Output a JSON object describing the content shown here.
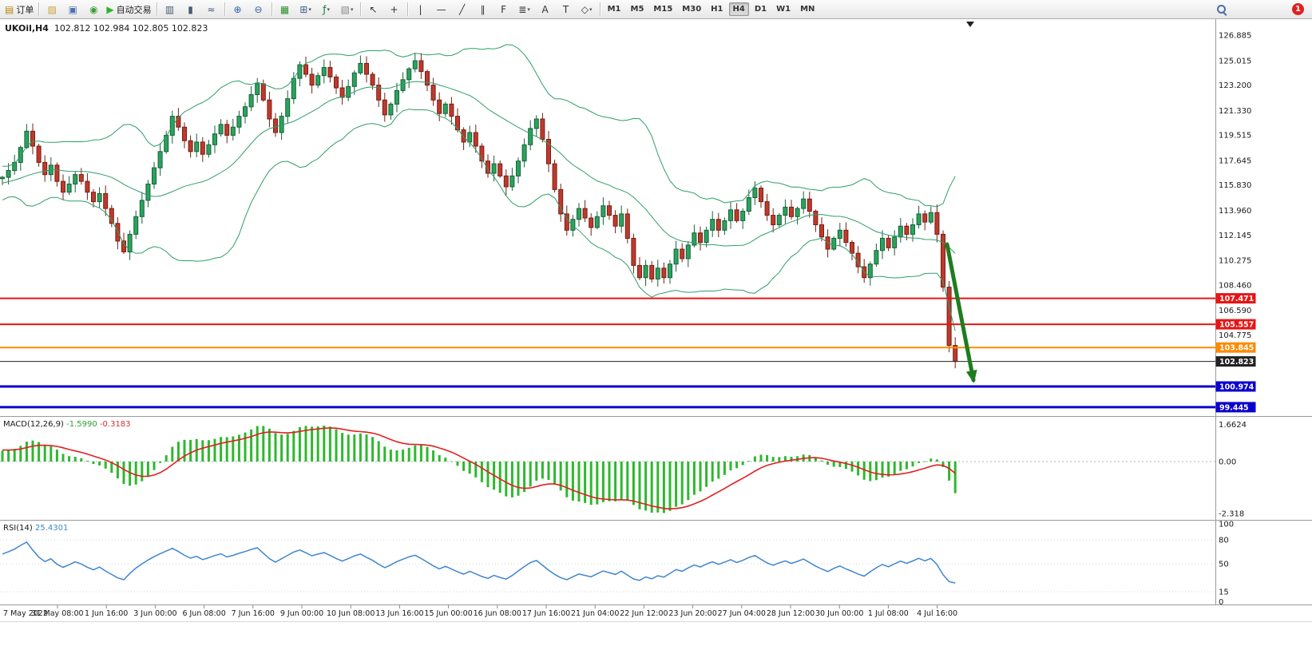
{
  "toolbar": {
    "badge_count": "1",
    "items": [
      {
        "name": "new-order-button",
        "kind": "labeled",
        "glyph": "▤",
        "color": "#b8860b",
        "label": "订单"
      },
      {
        "kind": "sep"
      },
      {
        "name": "chart-window-icon",
        "kind": "icon",
        "glyph": "▨",
        "color": "#c8a23c"
      },
      {
        "name": "profiles-icon",
        "kind": "icon",
        "glyph": "▣",
        "color": "#4d6fb0"
      },
      {
        "name": "market-watch-icon",
        "kind": "icon",
        "glyph": "◉",
        "color": "#3aa03a"
      },
      {
        "name": "autotrading-button",
        "kind": "labeled",
        "glyph": "▶",
        "color": "#2db52d",
        "label": "自动交易"
      },
      {
        "kind": "sep"
      },
      {
        "name": "bar-chart-icon",
        "kind": "icon",
        "glyph": "▥",
        "color": "#445a77"
      },
      {
        "name": "candlestick-chart-icon",
        "kind": "icon",
        "glyph": "▮",
        "color": "#445a77"
      },
      {
        "name": "line-chart-icon",
        "kind": "icon",
        "glyph": "≈",
        "color": "#445a77"
      },
      {
        "kind": "sep"
      },
      {
        "name": "zoom-in-icon",
        "kind": "icon",
        "glyph": "⊕",
        "color": "#2f5fa0"
      },
      {
        "name": "zoom-out-icon",
        "kind": "icon",
        "glyph": "⊖",
        "color": "#2f5fa0"
      },
      {
        "kind": "sep"
      },
      {
        "name": "tile-windows-icon",
        "kind": "icon",
        "glyph": "▦",
        "color": "#2d8f2d"
      },
      {
        "name": "arrange-windows-icon",
        "kind": "dropdown",
        "glyph": "⊞",
        "color": "#44608a"
      },
      {
        "name": "indicators-icon",
        "kind": "dropdown",
        "glyph": "ƒ",
        "color": "#0a7a3c"
      },
      {
        "name": "templates-icon",
        "kind": "dropdown",
        "glyph": "▧",
        "color": "#8a8a8a"
      },
      {
        "kind": "sep"
      },
      {
        "name": "cursor-icon",
        "kind": "icon",
        "glyph": "↖",
        "color": "#333333"
      },
      {
        "name": "crosshair-icon",
        "kind": "icon",
        "glyph": "+",
        "color": "#333333"
      },
      {
        "kind": "sep"
      },
      {
        "name": "vertical-line-icon",
        "kind": "icon",
        "glyph": "|",
        "color": "#333333"
      },
      {
        "name": "horizontal-line-icon",
        "kind": "icon",
        "glyph": "—",
        "color": "#333333"
      },
      {
        "name": "trendline-icon",
        "kind": "icon",
        "glyph": "╱",
        "color": "#333333"
      },
      {
        "name": "equidistant-channel-icon",
        "kind": "icon",
        "glyph": "∥",
        "color": "#333333"
      },
      {
        "name": "fibonacci-icon",
        "kind": "icon",
        "glyph": "F",
        "color": "#333333"
      },
      {
        "name": "more-lines-icon",
        "kind": "dropdown",
        "glyph": "≣",
        "color": "#333333"
      },
      {
        "name": "text-icon",
        "kind": "icon",
        "glyph": "A",
        "color": "#333333"
      },
      {
        "name": "text-label-icon",
        "kind": "icon",
        "glyph": "T",
        "color": "#333333"
      },
      {
        "name": "shapes-icon",
        "kind": "dropdown",
        "glyph": "◇",
        "color": "#333333"
      },
      {
        "kind": "sep"
      }
    ],
    "timeframes": [
      {
        "label": "M1",
        "active": false
      },
      {
        "label": "M5",
        "active": false
      },
      {
        "label": "M15",
        "active": false
      },
      {
        "label": "M30",
        "active": false
      },
      {
        "label": "H1",
        "active": false
      },
      {
        "label": "H4",
        "active": true
      },
      {
        "label": "D1",
        "active": false
      },
      {
        "label": "W1",
        "active": false
      },
      {
        "label": "MN",
        "active": false
      }
    ]
  },
  "chart_data": {
    "type": "candlestick",
    "title": {
      "symbol": "UKOil,H4",
      "ohlc": "102.812 102.984 102.805 102.823"
    },
    "timeframe": "H4",
    "price_axis_ticks": [
      126.885,
      125.015,
      123.2,
      121.33,
      119.515,
      117.645,
      115.83,
      113.96,
      112.145,
      110.275,
      108.46,
      106.59,
      104.775
    ],
    "hlines": [
      {
        "price": 107.471,
        "label": "107.471",
        "color": "#e81515",
        "width": 2
      },
      {
        "price": 105.557,
        "label": "105.557",
        "color": "#e81515",
        "width": 2
      },
      {
        "price": 103.845,
        "label": "103.845",
        "color": "#ff8a00",
        "width": 2
      },
      {
        "price": 102.823,
        "label": "102.823",
        "color": "#222222",
        "width": 1,
        "current": true
      },
      {
        "price": 100.974,
        "label": "100.974",
        "color": "#0b00cc",
        "width": 3
      },
      {
        "price": 99.445,
        "label": "99.445",
        "color": "#0b00cc",
        "width": 3
      }
    ],
    "time_labels": [
      "7 May 2022",
      "31 May 08:00",
      "1 Jun 16:00",
      "3 Jun 00:00",
      "6 Jun 08:00",
      "7 Jun 16:00",
      "9 Jun 00:00",
      "10 Jun 08:00",
      "13 Jun 16:00",
      "15 Jun 00:00",
      "16 Jun 08:00",
      "17 Jun 16:00",
      "21 Jun 04:00",
      "22 Jun 12:00",
      "23 Jun 20:00",
      "27 Jun 04:00",
      "28 Jun 12:00",
      "30 Jun 00:00",
      "1 Jul 08:00",
      "4 Jul 16:00"
    ],
    "history_closes": [
      114.0,
      114.6,
      115.2,
      115.8,
      116.3,
      115.9,
      115.3,
      114.8,
      115.4,
      116.0,
      116.5,
      117.0,
      116.6,
      116.1,
      115.7,
      116.2,
      116.8,
      116.4,
      116.0,
      116.3
    ],
    "closes": [
      116.4,
      116.9,
      117.5,
      118.6,
      119.8,
      118.7,
      117.5,
      116.6,
      117.3,
      116.1,
      115.3,
      115.9,
      116.6,
      116.1,
      115.3,
      114.6,
      115.2,
      114.1,
      113.0,
      111.7,
      110.9,
      112.2,
      113.5,
      114.7,
      115.9,
      117.1,
      118.3,
      119.5,
      120.9,
      120.1,
      119.1,
      118.3,
      119.0,
      118.1,
      118.8,
      119.6,
      120.3,
      119.5,
      120.1,
      120.9,
      121.6,
      122.5,
      123.3,
      122.1,
      120.7,
      119.7,
      120.9,
      122.2,
      123.7,
      124.7,
      124.0,
      123.2,
      123.9,
      124.5,
      123.8,
      123.0,
      122.3,
      123.1,
      124.1,
      124.8,
      124.0,
      123.2,
      122.1,
      121.0,
      121.8,
      122.8,
      123.6,
      124.4,
      125.0,
      124.2,
      123.2,
      122.1,
      121.1,
      121.8,
      120.9,
      119.9,
      119.0,
      119.7,
      118.7,
      117.6,
      116.7,
      117.4,
      116.5,
      115.7,
      116.5,
      117.6,
      118.8,
      120.0,
      120.7,
      119.2,
      117.4,
      115.5,
      113.7,
      112.5,
      113.3,
      114.1,
      113.4,
      112.7,
      113.5,
      114.3,
      113.6,
      112.8,
      113.7,
      111.9,
      109.9,
      109.0,
      109.9,
      108.9,
      109.7,
      109.0,
      110.0,
      111.1,
      110.4,
      111.4,
      112.3,
      111.6,
      112.5,
      113.3,
      112.5,
      113.2,
      114.0,
      113.2,
      113.9,
      114.9,
      115.6,
      114.6,
      113.6,
      112.9,
      113.6,
      114.2,
      113.5,
      114.1,
      114.8,
      113.9,
      112.9,
      112.0,
      111.1,
      111.9,
      112.5,
      111.6,
      110.8,
      109.8,
      109.0,
      110.0,
      111.0,
      111.9,
      111.2,
      112.0,
      112.8,
      112.2,
      112.9,
      113.7,
      113.1,
      113.8,
      112.2,
      108.3,
      104.0,
      102.823
    ],
    "bollinger": {
      "period": 20,
      "deviation": 2,
      "color": "#2e9e68"
    },
    "candle_up": {
      "fill": "#2aa45c",
      "stroke": "#17603a"
    },
    "candle_down": {
      "fill": "#c0392b",
      "stroke": "#731f16"
    },
    "indicators": {
      "macd": {
        "name": "MACD(12,26,9)",
        "value_main": "-1.5990",
        "value_signal": "-0.3183",
        "axis_ticks": [
          "1.6624",
          "0.00",
          "-2.318"
        ],
        "hist_color": "#2eb82e",
        "signal_color": "#e02020"
      },
      "rsi": {
        "name": "RSI(14)",
        "value": "25.4301",
        "axis_ticks": [
          100,
          80,
          50,
          15,
          0
        ],
        "levels": [
          80,
          50,
          15
        ],
        "color": "#3f86cf"
      }
    },
    "annotation_arrow": {
      "color": "#1e7d1e"
    }
  }
}
